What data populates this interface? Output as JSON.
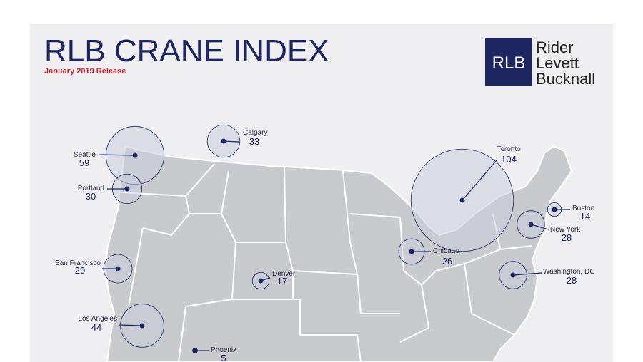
{
  "header": {
    "title": "RLB CRANE INDEX",
    "subtitle": "January 2019 Release"
  },
  "logo": {
    "mark": "RLB",
    "lines": [
      "Rider",
      "Levett",
      "Bucknall"
    ]
  },
  "cities": [
    {
      "name": "Calgary",
      "count": 33
    },
    {
      "name": "Seattle",
      "count": 59
    },
    {
      "name": "Portland",
      "count": 30
    },
    {
      "name": "San Francisco",
      "count": 29
    },
    {
      "name": "Los Angeles",
      "count": 44
    },
    {
      "name": "Phoenix",
      "count": 5
    },
    {
      "name": "Denver",
      "count": 17
    },
    {
      "name": "Chicago",
      "count": 26
    },
    {
      "name": "Toronto",
      "count": 104
    },
    {
      "name": "Boston",
      "count": 14
    },
    {
      "name": "New York",
      "count": 28
    },
    {
      "name": "Washington, DC",
      "count": 28
    }
  ]
}
